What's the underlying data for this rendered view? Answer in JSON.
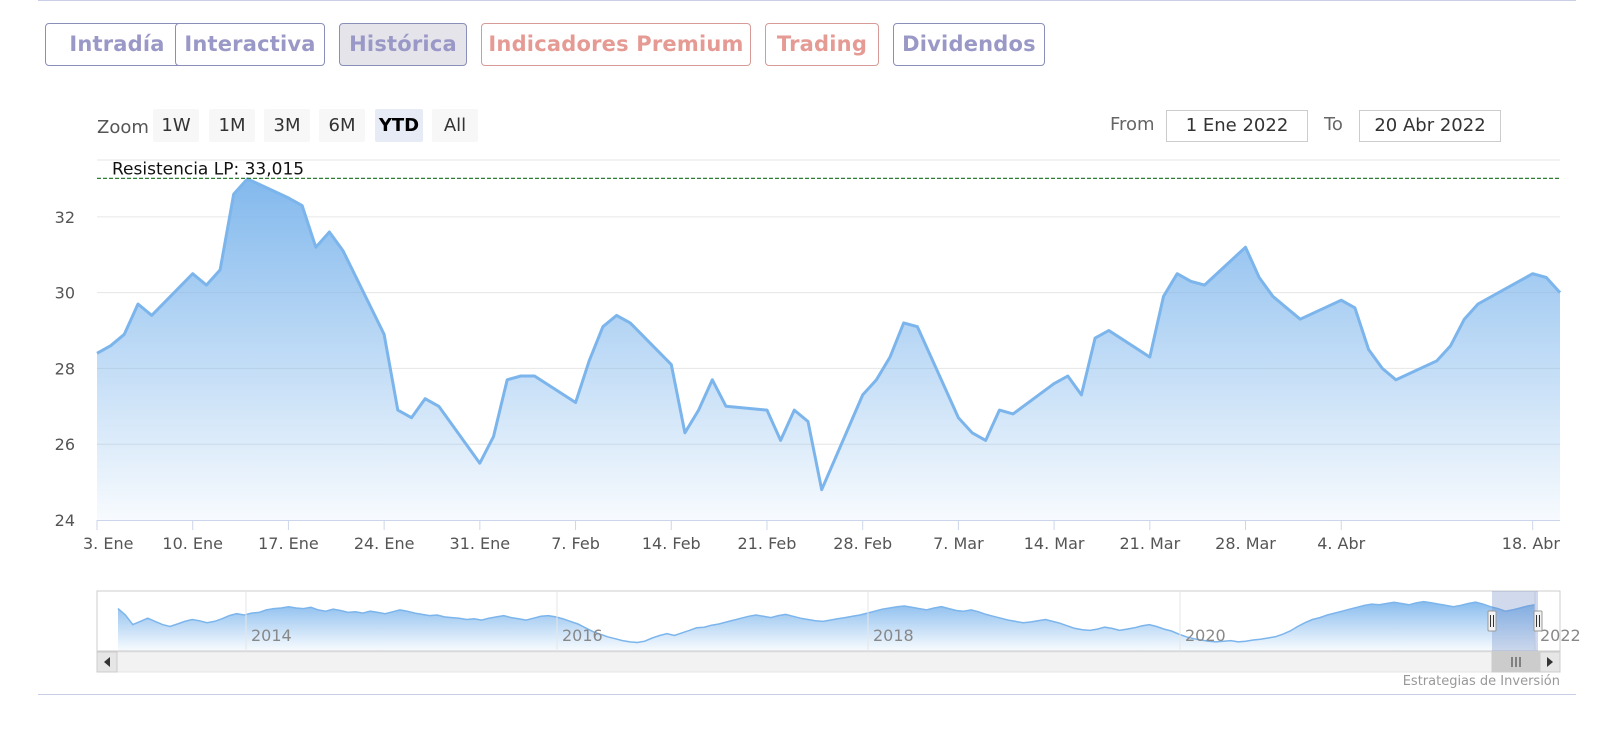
{
  "tabs": [
    {
      "label": "Intradía",
      "style": "normal"
    },
    {
      "label": "Interactiva",
      "style": "normal"
    },
    {
      "label": "Histórica",
      "style": "active"
    },
    {
      "label": "Indicadores Premium",
      "style": "red"
    },
    {
      "label": "Trading",
      "style": "red"
    },
    {
      "label": "Dividendos",
      "style": "normal"
    }
  ],
  "range_selector": {
    "zoom_label": "Zoom",
    "buttons": [
      "1W",
      "1M",
      "3M",
      "6M",
      "YTD",
      "All"
    ],
    "selected": "YTD",
    "from_label": "From",
    "from_value": "1 Ene 2022",
    "to_label": "To",
    "to_value": "20 Abr 2022"
  },
  "credits": "Estrategias de Inversión",
  "colors": {
    "line": "#7cb5ec",
    "area_top": "#7cb5ec",
    "resistance": "#2e7d32",
    "tab_purple": "#9a98c7",
    "tab_red": "#e69a94"
  },
  "chart_data": {
    "type": "area",
    "annotation": "Resistencia LP: 33,015",
    "resistance_value": 33.015,
    "ylim": [
      24,
      33.5
    ],
    "y_ticks": [
      24,
      26,
      28,
      30,
      32
    ],
    "x_ticks": [
      "3. Ene",
      "10. Ene",
      "17. Ene",
      "24. Ene",
      "31. Ene",
      "7. Feb",
      "14. Feb",
      "21. Feb",
      "28. Feb",
      "7. Mar",
      "14. Mar",
      "21. Mar",
      "28. Mar",
      "4. Abr",
      "18. Abr"
    ],
    "x_tick_days": [
      2,
      9,
      16,
      23,
      30,
      37,
      44,
      51,
      58,
      65,
      72,
      79,
      86,
      93,
      107
    ],
    "x_range_days": [
      2,
      109
    ],
    "series": [
      {
        "x": [
          "2022-01-03",
          "2022-01-04",
          "2022-01-05",
          "2022-01-06",
          "2022-01-07",
          "2022-01-10",
          "2022-01-11",
          "2022-01-12",
          "2022-01-13",
          "2022-01-14",
          "2022-01-17",
          "2022-01-18",
          "2022-01-19",
          "2022-01-20",
          "2022-01-21",
          "2022-01-24",
          "2022-01-25",
          "2022-01-26",
          "2022-01-27",
          "2022-01-28",
          "2022-01-31",
          "2022-02-01",
          "2022-02-02",
          "2022-02-03",
          "2022-02-04",
          "2022-02-07",
          "2022-02-08",
          "2022-02-09",
          "2022-02-10",
          "2022-02-11",
          "2022-02-14",
          "2022-02-15",
          "2022-02-16",
          "2022-02-17",
          "2022-02-18",
          "2022-02-21",
          "2022-02-22",
          "2022-02-23",
          "2022-02-24",
          "2022-02-25",
          "2022-02-28",
          "2022-03-01",
          "2022-03-02",
          "2022-03-03",
          "2022-03-04",
          "2022-03-07",
          "2022-03-08",
          "2022-03-09",
          "2022-03-10",
          "2022-03-11",
          "2022-03-14",
          "2022-03-15",
          "2022-03-16",
          "2022-03-17",
          "2022-03-18",
          "2022-03-21",
          "2022-03-22",
          "2022-03-23",
          "2022-03-24",
          "2022-03-25",
          "2022-03-28",
          "2022-03-29",
          "2022-03-30",
          "2022-03-31",
          "2022-04-01",
          "2022-04-04",
          "2022-04-05",
          "2022-04-06",
          "2022-04-07",
          "2022-04-08",
          "2022-04-11",
          "2022-04-12",
          "2022-04-13",
          "2022-04-14",
          "2022-04-18",
          "2022-04-19",
          "2022-04-20"
        ],
        "values": [
          28.4,
          28.6,
          28.9,
          29.7,
          29.4,
          30.5,
          30.2,
          30.6,
          32.6,
          33.0,
          32.5,
          32.3,
          31.2,
          31.6,
          31.1,
          28.9,
          26.9,
          26.7,
          27.2,
          27.0,
          25.5,
          26.2,
          27.7,
          27.8,
          27.8,
          27.1,
          28.2,
          29.1,
          29.4,
          29.2,
          28.1,
          26.3,
          26.9,
          27.7,
          27.0,
          26.9,
          26.1,
          26.9,
          26.6,
          24.8,
          27.3,
          27.7,
          28.3,
          29.2,
          29.1,
          26.7,
          26.3,
          26.1,
          26.9,
          26.8,
          27.6,
          27.8,
          27.3,
          28.8,
          29.0,
          28.3,
          29.9,
          30.5,
          30.3,
          30.2,
          31.2,
          30.4,
          29.9,
          29.6,
          29.3,
          29.8,
          29.6,
          28.5,
          28.0,
          27.7,
          28.2,
          28.6,
          29.3,
          29.7,
          30.5,
          30.4,
          30.0
        ]
      }
    ],
    "navigator": {
      "x_labels": [
        "2014",
        "2016",
        "2018",
        "2020",
        "2022"
      ],
      "values": [
        30,
        29,
        27.5,
        28,
        28.5,
        28,
        27.5,
        27.2,
        27.6,
        28,
        28.3,
        28.1,
        27.8,
        28,
        28.4,
        28.9,
        29.2,
        29,
        29.3,
        29.4,
        29.8,
        30,
        30.1,
        30.3,
        30.1,
        30,
        30.2,
        29.8,
        29.6,
        29.9,
        29.7,
        29.4,
        29.5,
        29.3,
        29.6,
        29.4,
        29.2,
        29.5,
        29.8,
        29.6,
        29.3,
        29.1,
        28.9,
        29.0,
        28.7,
        28.6,
        28.5,
        28.3,
        28.4,
        28.2,
        28.5,
        28.7,
        28.9,
        28.6,
        28.4,
        28.2,
        28.5,
        28.8,
        28.9,
        28.7,
        28.4,
        28.0,
        27.6,
        27.0,
        26.4,
        26.0,
        25.6,
        25.3,
        25.0,
        24.8,
        24.7,
        24.9,
        25.4,
        25.8,
        26.1,
        25.8,
        26.2,
        26.6,
        27.0,
        27.1,
        27.4,
        27.6,
        27.9,
        28.2,
        28.5,
        28.8,
        29.0,
        28.8,
        28.6,
        28.9,
        29.1,
        28.8,
        28.5,
        28.3,
        28.1,
        28.0,
        28.2,
        28.4,
        28.6,
        28.8,
        29.0,
        29.3,
        29.6,
        29.9,
        30.1,
        30.3,
        30.4,
        30.2,
        30.0,
        29.8,
        30.1,
        30.3,
        30.0,
        29.7,
        29.6,
        29.8,
        29.5,
        29.1,
        28.8,
        28.5,
        28.2,
        28.0,
        27.8,
        27.9,
        28.1,
        28.3,
        28.0,
        27.7,
        27.3,
        26.9,
        26.7,
        26.6,
        26.8,
        27.1,
        26.9,
        26.6,
        26.8,
        27.0,
        27.3,
        27.5,
        27.2,
        26.8,
        26.5,
        26.0,
        25.6,
        25.3,
        25.1,
        24.9,
        24.8,
        24.9,
        25.0,
        24.8,
        24.9,
        25.1,
        25.2,
        25.4,
        25.6,
        26.0,
        26.5,
        27.2,
        27.8,
        28.3,
        28.6,
        29.0,
        29.3,
        29.6,
        29.9,
        30.2,
        30.5,
        30.7,
        30.6,
        30.8,
        31.0,
        30.8,
        30.6,
        30.9,
        31.1,
        30.9,
        30.7,
        30.5,
        30.3,
        30.5,
        30.8,
        31.0,
        30.7,
        30.3,
        30.0,
        29.6,
        29.8,
        30.1,
        30.4,
        30.6
      ]
    }
  }
}
